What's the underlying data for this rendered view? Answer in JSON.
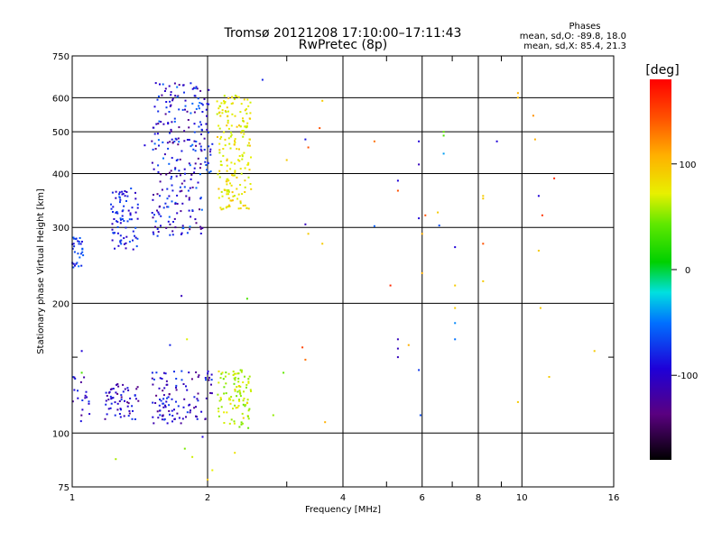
{
  "chart_data": {
    "type": "scatter",
    "title": "Tromsø 20121208 17:10:00–17:11:43",
    "subtitle": "RwPretec (8p)",
    "xlabel": "Frequency [MHz]",
    "ylabel": "Stationary phase Virtual Height [km]",
    "x_scale": "log",
    "y_scale": "log",
    "xlim": [
      1,
      16
    ],
    "ylim": [
      75,
      750
    ],
    "x_ticks": [
      1,
      2,
      4,
      6,
      8,
      10,
      16
    ],
    "x_tick_labels": [
      "1",
      "2",
      "4",
      "6",
      "8",
      "10",
      "16"
    ],
    "y_ticks": [
      75,
      100,
      200,
      300,
      400,
      500,
      600,
      750
    ],
    "y_tick_labels": [
      "75",
      "100",
      "200",
      "300",
      "400",
      "500",
      "600",
      "750"
    ],
    "grid": true,
    "phase_stats": {
      "heading": "Phases",
      "line_o": "mean, sd,O: -89.8, 18.0",
      "line_x": "mean, sd,X: 85.4, 21.3"
    },
    "colorbar": {
      "label": "[deg]",
      "range": [
        -180,
        180
      ],
      "ticks": [
        100,
        0,
        -100
      ],
      "tick_labels": [
        "100",
        "0",
        "-100"
      ]
    },
    "clusters": [
      {
        "f": [
          1.0,
          1.06
        ],
        "h": [
          240,
          290
        ],
        "phase": [
          -110,
          -80
        ],
        "n": 30
      },
      {
        "f": [
          1.22,
          1.4
        ],
        "h": [
          265,
          370
        ],
        "phase": [
          -120,
          -85
        ],
        "n": 80
      },
      {
        "f": [
          1.5,
          1.95
        ],
        "h": [
          285,
          650
        ],
        "phase": [
          -140,
          -80
        ],
        "n": 230
      },
      {
        "f": [
          1.9,
          2.05
        ],
        "h": [
          400,
          630
        ],
        "phase": [
          -130,
          -85
        ],
        "n": 35
      },
      {
        "f": [
          2.1,
          2.5
        ],
        "h": [
          330,
          620
        ],
        "phase": [
          75,
          115
        ],
        "n": 190
      },
      {
        "f": [
          1.0,
          1.1
        ],
        "h": [
          106,
          135
        ],
        "phase": [
          -135,
          -90
        ],
        "n": 20
      },
      {
        "f": [
          1.18,
          1.42
        ],
        "h": [
          107,
          130
        ],
        "phase": [
          -140,
          -95
        ],
        "n": 60
      },
      {
        "f": [
          1.5,
          2.05
        ],
        "h": [
          105,
          140
        ],
        "phase": [
          -140,
          -90
        ],
        "n": 110
      },
      {
        "f": [
          2.1,
          2.5
        ],
        "h": [
          102,
          140
        ],
        "phase": [
          40,
          110
        ],
        "n": 100
      }
    ],
    "scattered_points": [
      {
        "f": 1.05,
        "h": 155,
        "phase": -110
      },
      {
        "f": 1.05,
        "h": 138,
        "phase": 30
      },
      {
        "f": 1.25,
        "h": 87,
        "phase": 70
      },
      {
        "f": 1.45,
        "h": 465,
        "phase": -110
      },
      {
        "f": 1.65,
        "h": 160,
        "phase": -100
      },
      {
        "f": 1.75,
        "h": 208,
        "phase": -120
      },
      {
        "f": 1.78,
        "h": 92,
        "phase": 50
      },
      {
        "f": 1.8,
        "h": 165,
        "phase": 90
      },
      {
        "f": 1.85,
        "h": 88,
        "phase": 85
      },
      {
        "f": 1.95,
        "h": 98,
        "phase": -110
      },
      {
        "f": 2.0,
        "h": 78,
        "phase": 110
      },
      {
        "f": 2.05,
        "h": 82,
        "phase": 95
      },
      {
        "f": 2.15,
        "h": 115,
        "phase": 60
      },
      {
        "f": 2.3,
        "h": 90,
        "phase": 100
      },
      {
        "f": 2.45,
        "h": 205,
        "phase": 30
      },
      {
        "f": 2.65,
        "h": 660,
        "phase": -100
      },
      {
        "f": 2.95,
        "h": 138,
        "phase": 40
      },
      {
        "f": 2.8,
        "h": 110,
        "phase": 60
      },
      {
        "f": 3.0,
        "h": 430,
        "phase": 110
      },
      {
        "f": 3.25,
        "h": 158,
        "phase": 155
      },
      {
        "f": 3.3,
        "h": 148,
        "phase": 140
      },
      {
        "f": 3.3,
        "h": 480,
        "phase": -105
      },
      {
        "f": 3.35,
        "h": 460,
        "phase": 150
      },
      {
        "f": 3.3,
        "h": 305,
        "phase": -120
      },
      {
        "f": 3.35,
        "h": 290,
        "phase": 110
      },
      {
        "f": 3.55,
        "h": 510,
        "phase": 150
      },
      {
        "f": 3.6,
        "h": 590,
        "phase": 110
      },
      {
        "f": 3.6,
        "h": 275,
        "phase": 110
      },
      {
        "f": 3.65,
        "h": 106,
        "phase": 120
      },
      {
        "f": 4.7,
        "h": 475,
        "phase": 140
      },
      {
        "f": 4.7,
        "h": 302,
        "phase": -85
      },
      {
        "f": 5.1,
        "h": 220,
        "phase": 165
      },
      {
        "f": 5.3,
        "h": 385,
        "phase": -110
      },
      {
        "f": 5.3,
        "h": 365,
        "phase": 150
      },
      {
        "f": 5.3,
        "h": 165,
        "phase": -120
      },
      {
        "f": 5.3,
        "h": 157,
        "phase": -120
      },
      {
        "f": 5.3,
        "h": 150,
        "phase": -120
      },
      {
        "f": 5.6,
        "h": 160,
        "phase": 120
      },
      {
        "f": 5.9,
        "h": 475,
        "phase": -110
      },
      {
        "f": 5.9,
        "h": 420,
        "phase": -120
      },
      {
        "f": 5.9,
        "h": 315,
        "phase": -110
      },
      {
        "f": 5.9,
        "h": 140,
        "phase": -95
      },
      {
        "f": 5.95,
        "h": 110,
        "phase": -90
      },
      {
        "f": 6.0,
        "h": 290,
        "phase": 120
      },
      {
        "f": 6.0,
        "h": 235,
        "phase": 120
      },
      {
        "f": 6.1,
        "h": 320,
        "phase": 150
      },
      {
        "f": 6.5,
        "h": 325,
        "phase": 110
      },
      {
        "f": 6.55,
        "h": 303,
        "phase": -90
      },
      {
        "f": 6.7,
        "h": 500,
        "phase": 40
      },
      {
        "f": 6.7,
        "h": 490,
        "phase": 30
      },
      {
        "f": 6.7,
        "h": 445,
        "phase": -60
      },
      {
        "f": 7.1,
        "h": 270,
        "phase": -110
      },
      {
        "f": 7.1,
        "h": 220,
        "phase": 110
      },
      {
        "f": 7.1,
        "h": 195,
        "phase": 110
      },
      {
        "f": 7.1,
        "h": 180,
        "phase": -70
      },
      {
        "f": 7.1,
        "h": 165,
        "phase": -80
      },
      {
        "f": 8.2,
        "h": 355,
        "phase": 110
      },
      {
        "f": 8.2,
        "h": 350,
        "phase": 110
      },
      {
        "f": 8.2,
        "h": 275,
        "phase": 150
      },
      {
        "f": 8.2,
        "h": 225,
        "phase": 110
      },
      {
        "f": 8.8,
        "h": 475,
        "phase": -110
      },
      {
        "f": 9.8,
        "h": 615,
        "phase": 120
      },
      {
        "f": 9.8,
        "h": 600,
        "phase": 115
      },
      {
        "f": 9.8,
        "h": 118,
        "phase": 110
      },
      {
        "f": 10.6,
        "h": 545,
        "phase": 130
      },
      {
        "f": 10.7,
        "h": 480,
        "phase": 120
      },
      {
        "f": 10.9,
        "h": 355,
        "phase": -110
      },
      {
        "f": 10.9,
        "h": 265,
        "phase": 110
      },
      {
        "f": 11.0,
        "h": 195,
        "phase": 110
      },
      {
        "f": 11.1,
        "h": 320,
        "phase": 160
      },
      {
        "f": 11.5,
        "h": 135,
        "phase": 110
      },
      {
        "f": 11.8,
        "h": 390,
        "phase": 165
      },
      {
        "f": 14.5,
        "h": 155,
        "phase": 110
      }
    ]
  }
}
